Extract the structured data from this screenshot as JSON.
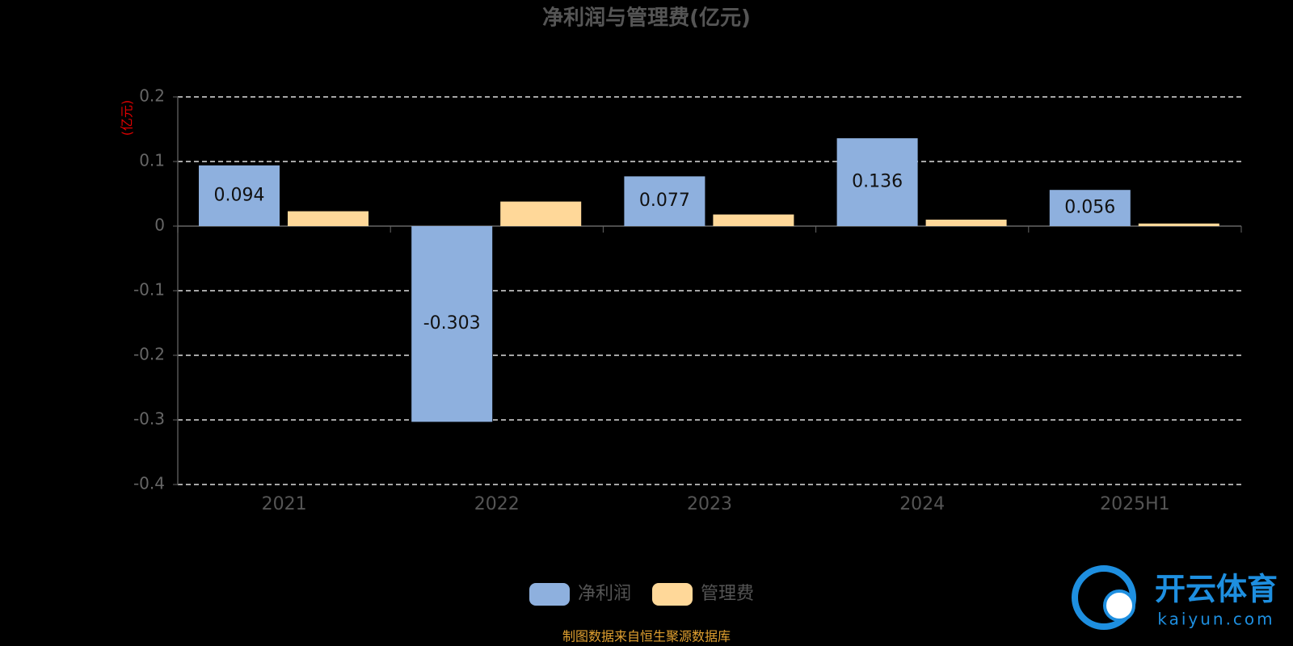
{
  "chart_data": {
    "type": "bar",
    "title": "净利润与管理费(亿元)",
    "y_axis_label": "(亿元)",
    "categories": [
      "2021",
      "2022",
      "2023",
      "2024",
      "2025H1"
    ],
    "series": [
      {
        "name": "净利润",
        "color": "#8eb0de",
        "values": [
          0.094,
          -0.303,
          0.077,
          0.136,
          0.056
        ],
        "data_labels": true
      },
      {
        "name": "管理费",
        "color": "#ffd899",
        "values": [
          0.023,
          0.038,
          0.018,
          0.01,
          0.004
        ],
        "data_labels": false
      }
    ],
    "ylim": [
      -0.4,
      0.2
    ],
    "yticks": [
      0.2,
      0.1,
      0,
      -0.1,
      -0.2,
      -0.3,
      -0.4
    ],
    "grid": true,
    "legend": "bottom",
    "source": "制图数据来自恒生聚源数据库",
    "watermark": {
      "name": "开云体育",
      "url": "kaiyun.com"
    }
  }
}
